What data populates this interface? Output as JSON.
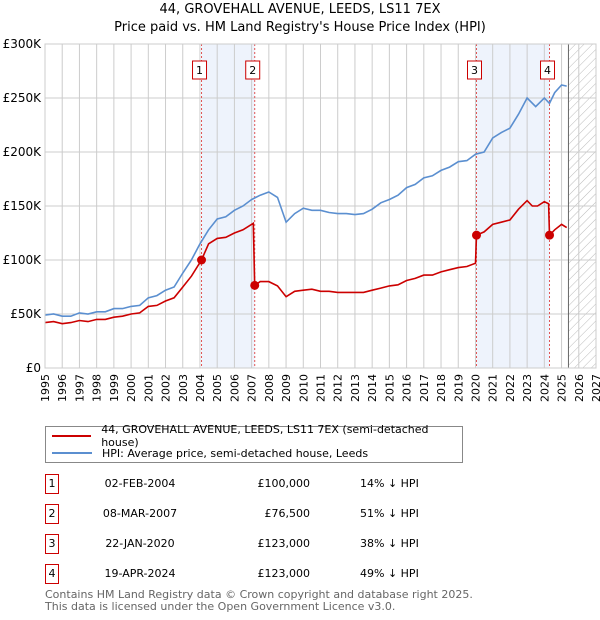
{
  "chart_data": {
    "type": "line",
    "title": "44, GROVEHALL AVENUE, LEEDS, LS11 7EX",
    "subtitle": "Price paid vs. HM Land Registry's House Price Index (HPI)",
    "xlim": [
      1995,
      2027
    ],
    "ylim": [
      0,
      300000
    ],
    "y_ticks": [
      {
        "v": 0,
        "label": "£0"
      },
      {
        "v": 50000,
        "label": "£50K"
      },
      {
        "v": 100000,
        "label": "£100K"
      },
      {
        "v": 150000,
        "label": "£150K"
      },
      {
        "v": 200000,
        "label": "£200K"
      },
      {
        "v": 250000,
        "label": "£250K"
      },
      {
        "v": 300000,
        "label": "£300K"
      }
    ],
    "x_ticks": [
      "1995",
      "1996",
      "1997",
      "1998",
      "1999",
      "2000",
      "2001",
      "2002",
      "2003",
      "2004",
      "2005",
      "2006",
      "2007",
      "2008",
      "2009",
      "2010",
      "2011",
      "2012",
      "2013",
      "2014",
      "2015",
      "2016",
      "2017",
      "2018",
      "2019",
      "2020",
      "2021",
      "2022",
      "2023",
      "2024",
      "2025",
      "2026",
      "2027"
    ],
    "grid": true,
    "forecast_hatch_from": 2025.4,
    "shaded_ranges": [
      [
        2004.09,
        2007.18
      ],
      [
        2020.06,
        2024.3
      ]
    ],
    "series": [
      {
        "name": "44, GROVEHALL AVENUE, LEEDS, LS11 7EX (semi-detached house)",
        "color": "#cc0000",
        "x": [
          1995,
          1995.5,
          1996,
          1996.5,
          1997,
          1997.5,
          1998,
          1998.5,
          1999,
          1999.5,
          2000,
          2000.5,
          2001,
          2001.5,
          2002,
          2002.5,
          2003,
          2003.5,
          2004.09,
          2004.5,
          2005,
          2005.5,
          2006,
          2006.5,
          2007.1,
          2007.18,
          2007.5,
          2008,
          2008.5,
          2009,
          2009.5,
          2010,
          2010.5,
          2011,
          2011.5,
          2012,
          2012.5,
          2013,
          2013.5,
          2014,
          2014.5,
          2015,
          2015.5,
          2016,
          2016.5,
          2017,
          2017.5,
          2018,
          2018.5,
          2019,
          2019.5,
          2020.0,
          2020.06,
          2020.5,
          2021,
          2021.5,
          2022,
          2022.5,
          2023,
          2023.3,
          2023.6,
          2024,
          2024.25,
          2024.3,
          2024.6,
          2025,
          2025.3
        ],
        "y": [
          42000,
          43000,
          41000,
          42000,
          44000,
          43000,
          45000,
          45000,
          47000,
          48000,
          50000,
          51000,
          57000,
          58000,
          62000,
          65000,
          75000,
          85000,
          100000,
          115000,
          120000,
          121000,
          125000,
          128000,
          134000,
          76500,
          80000,
          80000,
          76000,
          66000,
          71000,
          72000,
          73000,
          71000,
          71000,
          70000,
          70000,
          70000,
          70000,
          72000,
          74000,
          76000,
          77000,
          81000,
          83000,
          86000,
          86000,
          89000,
          91000,
          93000,
          94000,
          97000,
          123000,
          126000,
          133000,
          135000,
          137000,
          147000,
          155000,
          150000,
          150000,
          154000,
          152000,
          123000,
          128000,
          133000,
          130000
        ]
      },
      {
        "name": "HPI: Average price, semi-detached house, Leeds",
        "color": "#5b8fd0",
        "x": [
          1995,
          1995.5,
          1996,
          1996.5,
          1997,
          1997.5,
          1998,
          1998.5,
          1999,
          1999.5,
          2000,
          2000.5,
          2001,
          2001.5,
          2002,
          2002.5,
          2003,
          2003.5,
          2004,
          2004.5,
          2005,
          2005.5,
          2006,
          2006.5,
          2007,
          2007.5,
          2008,
          2008.5,
          2009,
          2009.5,
          2010,
          2010.5,
          2011,
          2011.5,
          2012,
          2012.5,
          2013,
          2013.5,
          2014,
          2014.5,
          2015,
          2015.5,
          2016,
          2016.5,
          2017,
          2017.5,
          2018,
          2018.5,
          2019,
          2019.5,
          2020,
          2020.5,
          2021,
          2021.5,
          2022,
          2022.5,
          2023,
          2023.5,
          2024,
          2024.3,
          2024.6,
          2025,
          2025.3
        ],
        "y": [
          49000,
          50000,
          48000,
          48000,
          51000,
          50000,
          52000,
          52000,
          55000,
          55000,
          57000,
          58000,
          65000,
          67000,
          72000,
          75000,
          88000,
          100000,
          115000,
          128000,
          138000,
          140000,
          146000,
          150000,
          156000,
          160000,
          163000,
          158000,
          135000,
          143000,
          148000,
          146000,
          146000,
          144000,
          143000,
          143000,
          142000,
          143000,
          147000,
          153000,
          156000,
          160000,
          167000,
          170000,
          176000,
          178000,
          183000,
          186000,
          191000,
          192000,
          198000,
          200000,
          213000,
          218000,
          222000,
          235000,
          250000,
          242000,
          250000,
          245000,
          255000,
          262000,
          261000
        ]
      }
    ],
    "sales": [
      {
        "n": "1",
        "x": 2004.09,
        "y": 100000
      },
      {
        "n": "2",
        "x": 2007.18,
        "y": 76500
      },
      {
        "n": "3",
        "x": 2020.06,
        "y": 123000
      },
      {
        "n": "4",
        "x": 2024.3,
        "y": 123000
      }
    ]
  },
  "legend": {
    "property": "44, GROVEHALL AVENUE, LEEDS, LS11 7EX (semi-detached house)",
    "hpi": "HPI: Average price, semi-detached house, Leeds"
  },
  "transactions": [
    {
      "n": "1",
      "date": "02-FEB-2004",
      "price": "£100,000",
      "diff": "14% ↓ HPI"
    },
    {
      "n": "2",
      "date": "08-MAR-2007",
      "price": "£76,500",
      "diff": "51% ↓ HPI"
    },
    {
      "n": "3",
      "date": "22-JAN-2020",
      "price": "£123,000",
      "diff": "38% ↓ HPI"
    },
    {
      "n": "4",
      "date": "19-APR-2024",
      "price": "£123,000",
      "diff": "49% ↓ HPI"
    }
  ],
  "footer": [
    "Contains HM Land Registry data © Crown copyright and database right 2025.",
    "This data is licensed under the Open Government Licence v3.0."
  ],
  "colors": {
    "red": "#cc0000",
    "blue": "#5b8fd0",
    "shade": "#eef3fc"
  }
}
